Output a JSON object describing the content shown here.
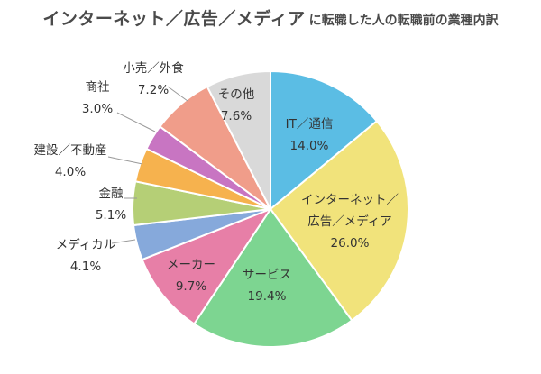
{
  "title_main": "インターネット／広告／メディア",
  "title_sub": "に転職した人の転職前の業種内訳",
  "chart_data": {
    "type": "pie",
    "title": "インターネット／広告／メディア に転職した人の転職前の業種内訳",
    "unit": "%",
    "slices": [
      {
        "label": "IT／通信",
        "value": 14.0,
        "value_label": "14.0%",
        "color": "#5bbde4"
      },
      {
        "label": "インターネット／広告／メディア",
        "label_lines": [
          "インターネット／",
          "広告／メディア"
        ],
        "value": 26.0,
        "value_label": "26.0%",
        "color": "#f1e37b"
      },
      {
        "label": "サービス",
        "value": 19.4,
        "value_label": "19.4%",
        "color": "#7dd591"
      },
      {
        "label": "メーカー",
        "value": 9.7,
        "value_label": "9.7%",
        "color": "#e77fa7"
      },
      {
        "label": "メディカル",
        "value": 4.1,
        "value_label": "4.1%",
        "color": "#86a9db"
      },
      {
        "label": "金融",
        "value": 5.1,
        "value_label": "5.1%",
        "color": "#b5cf76"
      },
      {
        "label": "建設／不動産",
        "value": 4.0,
        "value_label": "4.0%",
        "color": "#f6b24e"
      },
      {
        "label": "商社",
        "value": 3.0,
        "value_label": "3.0%",
        "color": "#c875c2"
      },
      {
        "label": "小売／外食",
        "value": 7.2,
        "value_label": "7.2%",
        "color": "#f09d8a"
      },
      {
        "label": "その他",
        "value": 7.6,
        "value_label": "7.6%",
        "color": "#d9d9d9"
      }
    ]
  }
}
